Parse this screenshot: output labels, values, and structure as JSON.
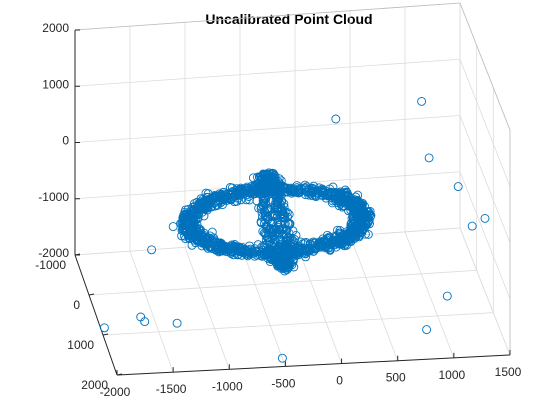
{
  "chart_data": {
    "type": "scatter",
    "title": "Uncalibrated Point Cloud",
    "marker": "open-circle",
    "color": "#0072BD",
    "grid": true,
    "xlim": [
      -2000,
      1500
    ],
    "ylim": [
      -1000,
      2000
    ],
    "zlim": [
      -2000,
      2000
    ],
    "x_ticks": [
      "-2000",
      "-1500",
      "-1000",
      "-500",
      "0",
      "500",
      "1000",
      "1500"
    ],
    "y_ticks": [
      "-1000",
      "0",
      "1000",
      "2000"
    ],
    "z_ticks": [
      "-2000",
      "-1000",
      "0",
      "1000",
      "2000"
    ],
    "structure": [
      {
        "shape": "ring",
        "center": [
          -430,
          800,
          -290
        ],
        "radius": 780,
        "normal_axis": "y",
        "count": 600
      },
      {
        "shape": "ring",
        "center": [
          -430,
          800,
          -290
        ],
        "radius": 780,
        "normal_axis": "z",
        "count": 600
      },
      {
        "shape": "ring",
        "center": [
          -430,
          800,
          -290
        ],
        "radius": 780,
        "normal_axis": "x",
        "count": 420
      }
    ],
    "outliers": [
      [
        -1400,
        1500,
        -1500
      ],
      [
        -1600,
        800,
        -1950
      ],
      [
        -2000,
        1100,
        -1800
      ],
      [
        900,
        700,
        1600
      ],
      [
        1400,
        400,
        -900
      ],
      [
        1500,
        500,
        -700
      ],
      [
        -1200,
        -300,
        -1100
      ],
      [
        1000,
        1600,
        -1200
      ],
      [
        -1700,
        1300,
        -1500
      ],
      [
        800,
        1700,
        -1700
      ],
      [
        1200,
        900,
        200
      ],
      [
        -500,
        1800,
        -2000
      ],
      [
        200,
        200,
        1000
      ],
      [
        -1500,
        500,
        -900
      ],
      [
        1100,
        -200,
        -100
      ]
    ]
  }
}
